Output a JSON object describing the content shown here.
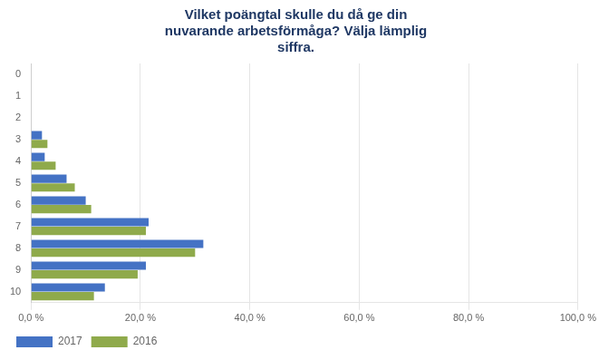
{
  "chart_data": {
    "type": "bar",
    "orientation": "horizontal",
    "title": "Vilket poängtal skulle du då ge din\nnuvarande arbetsförmåga? Välja lämplig\nsiffra.",
    "categories": [
      0,
      1,
      2,
      3,
      4,
      5,
      6,
      7,
      8,
      9,
      10
    ],
    "series": [
      {
        "name": "2017",
        "color": "#4472C4",
        "values": [
          0.0,
          0.0,
          0.0,
          2.0,
          2.5,
          6.5,
          10.0,
          21.5,
          31.5,
          21.0,
          13.5
        ]
      },
      {
        "name": "2016",
        "color": "#8faa4b",
        "values": [
          0.0,
          0.0,
          0.0,
          3.0,
          4.5,
          8.0,
          11.0,
          21.0,
          30.0,
          19.5,
          11.5
        ]
      }
    ],
    "xlim": [
      0,
      100
    ],
    "xticks": [
      {
        "value": 0,
        "label": "0,0 %"
      },
      {
        "value": 20,
        "label": "20,0 %"
      },
      {
        "value": 40,
        "label": "40,0 %"
      },
      {
        "value": 60,
        "label": "60,0 %"
      },
      {
        "value": 80,
        "label": "80,0 %"
      },
      {
        "value": 100,
        "label": "100,0 %"
      }
    ],
    "grid": true,
    "legend": "bottom"
  }
}
